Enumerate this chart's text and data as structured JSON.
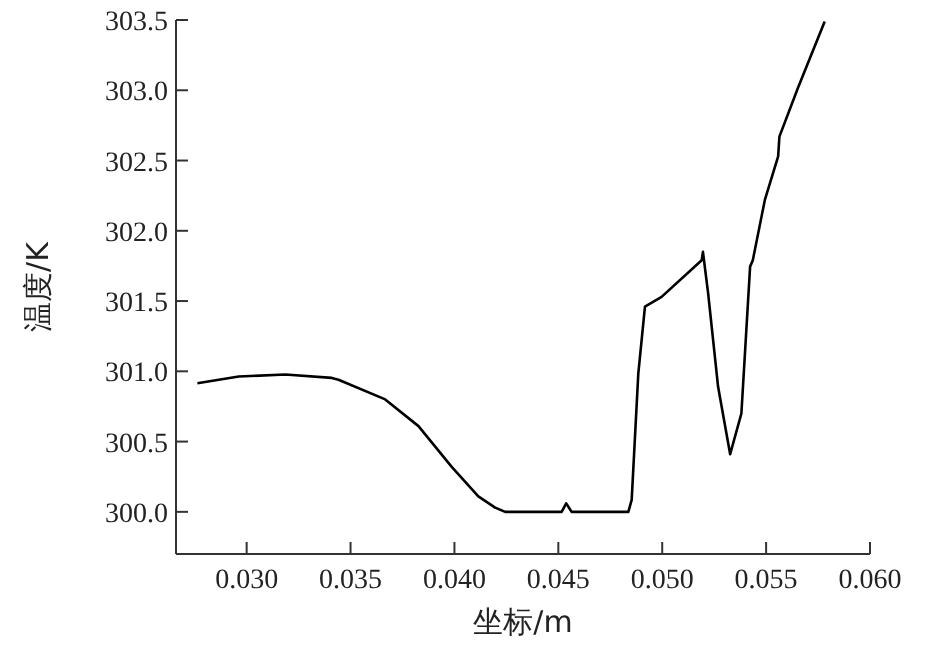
{
  "chart_data": {
    "type": "line",
    "xlabel": "坐标/m",
    "ylabel": "温度/K",
    "color": "#000000",
    "x": [
      0.02763,
      0.02962,
      0.03186,
      0.0341,
      0.03442,
      0.03667,
      0.03827,
      0.03987,
      0.04115,
      0.04196,
      0.04244,
      0.04516,
      0.04538,
      0.04564,
      0.04837,
      0.04853,
      0.04885,
      0.04917,
      0.04997,
      0.0519,
      0.05196,
      0.05221,
      0.05269,
      0.05327,
      0.05381,
      0.05423,
      0.05436,
      0.05494,
      0.05558,
      0.05564,
      0.05654,
      0.05782
    ],
    "values": [
      300.915,
      300.963,
      300.977,
      300.953,
      300.94,
      300.8,
      300.61,
      300.32,
      300.11,
      300.03,
      300.0,
      300.0,
      300.06,
      300.0,
      300.0,
      300.085,
      300.986,
      301.46,
      301.53,
      301.79,
      301.85,
      301.555,
      300.89,
      300.41,
      300.7,
      301.745,
      301.79,
      302.22,
      302.53,
      302.67,
      303.02,
      303.49
    ],
    "xlim": [
      0.0266,
      0.06
    ],
    "ylim": [
      299.7,
      303.5
    ],
    "xticks": [
      {
        "value": 0.03,
        "label": "0.030"
      },
      {
        "value": 0.035,
        "label": "0.035"
      },
      {
        "value": 0.04,
        "label": "0.040"
      },
      {
        "value": 0.045,
        "label": "0.045"
      },
      {
        "value": 0.05,
        "label": "0.050"
      },
      {
        "value": 0.055,
        "label": "0.055"
      },
      {
        "value": 0.06,
        "label": "0.060"
      }
    ],
    "yticks": [
      {
        "value": 300,
        "label": "300.0"
      },
      {
        "value": 300.5,
        "label": "300.5"
      },
      {
        "value": 301,
        "label": "301.0"
      },
      {
        "value": 301.5,
        "label": "301.5"
      },
      {
        "value": 302,
        "label": "302.0"
      },
      {
        "value": 302.5,
        "label": "302.5"
      },
      {
        "value": 303,
        "label": "303.0"
      },
      {
        "value": 303.5,
        "label": "303.5"
      }
    ]
  }
}
